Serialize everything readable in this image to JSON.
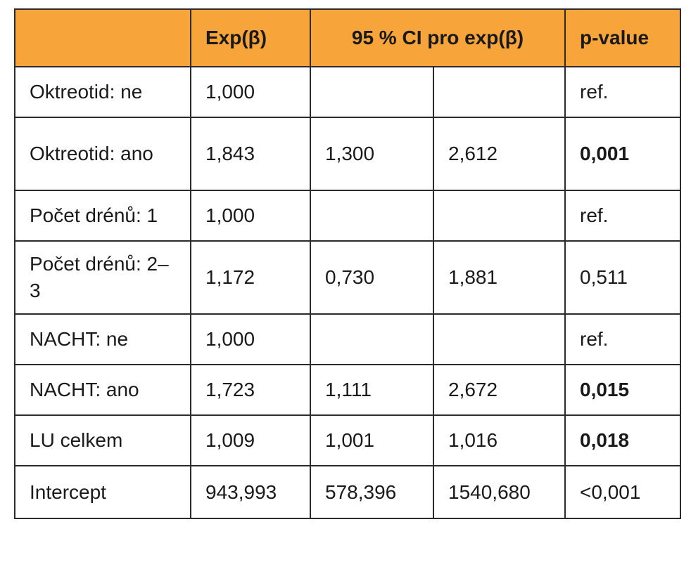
{
  "table": {
    "headers": {
      "label": "",
      "exp_beta": "Exp(β)",
      "ci": "95 % CI pro exp(β)",
      "p_value": "p-value"
    },
    "rows": [
      {
        "label": "Oktreotid: ne",
        "exp_beta": "1,000",
        "ci_low": "",
        "ci_high": "",
        "p_value": "ref.",
        "p_bold": false
      },
      {
        "label": "Oktreotid: ano",
        "exp_beta": "1,843",
        "ci_low": "1,300",
        "ci_high": "2,612",
        "p_value": "0,001",
        "p_bold": true
      },
      {
        "label": "Počet drénů: 1",
        "exp_beta": "1,000",
        "ci_low": "",
        "ci_high": "",
        "p_value": "ref.",
        "p_bold": false
      },
      {
        "label": "Počet drénů: 2–3",
        "exp_beta": "1,172",
        "ci_low": "0,730",
        "ci_high": "1,881",
        "p_value": "0,511",
        "p_bold": false
      },
      {
        "label": "NACHT: ne",
        "exp_beta": "1,000",
        "ci_low": "",
        "ci_high": "",
        "p_value": "ref.",
        "p_bold": false
      },
      {
        "label": "NACHT: ano",
        "exp_beta": "1,723",
        "ci_low": "1,111",
        "ci_high": "2,672",
        "p_value": "0,015",
        "p_bold": true
      },
      {
        "label": "LU celkem",
        "exp_beta": "1,009",
        "ci_low": "1,001",
        "ci_high": "1,016",
        "p_value": "0,018",
        "p_bold": true
      },
      {
        "label": "Intercept",
        "exp_beta": "943,993",
        "ci_low": "578,396",
        "ci_high": "1540,680",
        "p_value": "<0,001",
        "p_bold": false
      }
    ]
  },
  "colors": {
    "header_background": "#f7a43a",
    "border": "#2b2b2b"
  }
}
